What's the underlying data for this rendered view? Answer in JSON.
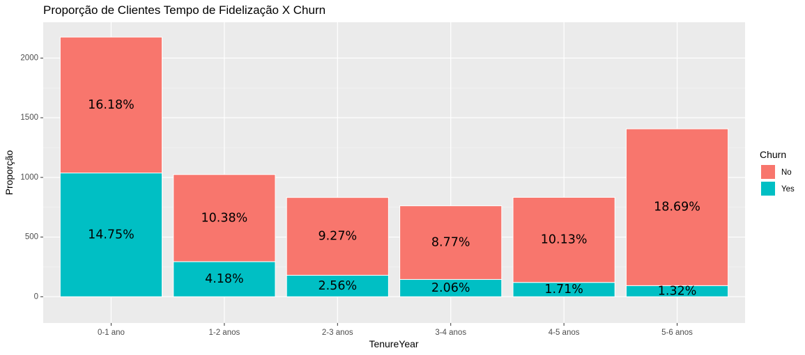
{
  "chart_data": {
    "type": "bar",
    "stacked": true,
    "title": "Proporção de Clientes Tempo de Fidelização X Churn",
    "xlabel": "TenureYear",
    "ylabel": "Proporção",
    "categories": [
      "0-1 ano",
      "1-2 anos",
      "2-3 anos",
      "3-4 anos",
      "4-5 anos",
      "5-6 anos"
    ],
    "series": [
      {
        "name": "Yes",
        "color": "#00BFC4",
        "values": [
          1037,
          294,
          180,
          145,
          120,
          93
        ],
        "labels": [
          "14.75%",
          "4.18%",
          "2.56%",
          "2.06%",
          "1.71%",
          "1.32%"
        ]
      },
      {
        "name": "No",
        "color": "#F8766D",
        "values": [
          1139,
          730,
          652,
          617,
          713,
          1314
        ],
        "labels": [
          "16.18%",
          "10.38%",
          "9.27%",
          "8.77%",
          "10.13%",
          "18.69%"
        ]
      }
    ],
    "ylim": [
      -220,
      2300
    ],
    "yticks": [
      0,
      500,
      1000,
      1500,
      2000
    ],
    "legend": {
      "title": "Churn",
      "position": "right",
      "items": [
        {
          "label": "No",
          "color": "#F8766D"
        },
        {
          "label": "Yes",
          "color": "#00BFC4"
        }
      ]
    },
    "grid": true
  }
}
